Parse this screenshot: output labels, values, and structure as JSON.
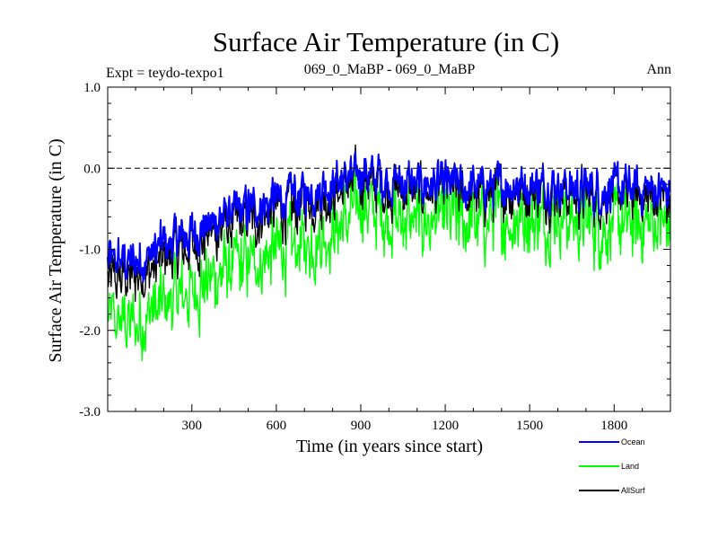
{
  "chart_data": {
    "type": "line",
    "title": "Surface Air Temperature (in C)",
    "subtitle_left": "Expt = teydo-texpo1",
    "subtitle_center": "069_0_MaBP - 069_0_MaBP",
    "subtitle_right": "Ann",
    "xlabel": "Time (in years since start)",
    "ylabel": "Surface Air Temperature (in C)",
    "xlim": [
      1,
      2000
    ],
    "ylim": [
      -3.0,
      1.0
    ],
    "x_ticks": [
      300,
      600,
      900,
      1200,
      1500,
      1800
    ],
    "x_tick_labels": [
      "300",
      "600",
      "900",
      "1200",
      "1500",
      "1800"
    ],
    "y_ticks": [
      -3.0,
      -2.0,
      -1.0,
      0.0,
      1.0
    ],
    "y_tick_labels": [
      "-3.0",
      "-2.0",
      "-1.0",
      "0.0",
      "1.0"
    ],
    "reference_line": 0.0,
    "legend": [
      "Ocean",
      "Land",
      "AllSurf"
    ],
    "series": [
      {
        "name": "Ocean",
        "color": "#0000ff",
        "x": [
          1,
          100,
          200,
          300,
          400,
          500,
          600,
          700,
          800,
          900,
          1000,
          1100,
          1200,
          1300,
          1400,
          1500,
          1600,
          1700,
          1800,
          1900,
          2000
        ],
        "values": [
          -1.15,
          -1.15,
          -0.95,
          -0.8,
          -0.6,
          -0.5,
          -0.4,
          -0.3,
          -0.2,
          -0.05,
          -0.15,
          -0.2,
          -0.2,
          -0.25,
          -0.2,
          -0.2,
          -0.2,
          -0.25,
          -0.25,
          -0.25,
          -0.3
        ]
      },
      {
        "name": "Land",
        "color": "#00ff00",
        "x": [
          1,
          100,
          200,
          300,
          400,
          500,
          600,
          700,
          800,
          900,
          1000,
          1100,
          1200,
          1300,
          1400,
          1500,
          1600,
          1700,
          1800,
          1900,
          2000
        ],
        "values": [
          -1.9,
          -1.9,
          -1.7,
          -1.5,
          -1.3,
          -1.15,
          -1.05,
          -0.95,
          -0.8,
          -0.45,
          -0.6,
          -0.65,
          -0.65,
          -0.65,
          -0.65,
          -0.6,
          -0.6,
          -0.7,
          -0.7,
          -0.7,
          -0.7
        ]
      },
      {
        "name": "AllSurf",
        "color": "#000000",
        "x": [
          1,
          100,
          200,
          300,
          400,
          500,
          600,
          700,
          800,
          900,
          1000,
          1100,
          1200,
          1300,
          1400,
          1500,
          1600,
          1700,
          1800,
          1900,
          2000
        ],
        "values": [
          -1.35,
          -1.35,
          -1.15,
          -0.95,
          -0.75,
          -0.65,
          -0.55,
          -0.45,
          -0.35,
          -0.15,
          -0.25,
          -0.3,
          -0.3,
          -0.35,
          -0.3,
          -0.3,
          -0.3,
          -0.35,
          -0.35,
          -0.35,
          -0.4
        ]
      }
    ]
  }
}
